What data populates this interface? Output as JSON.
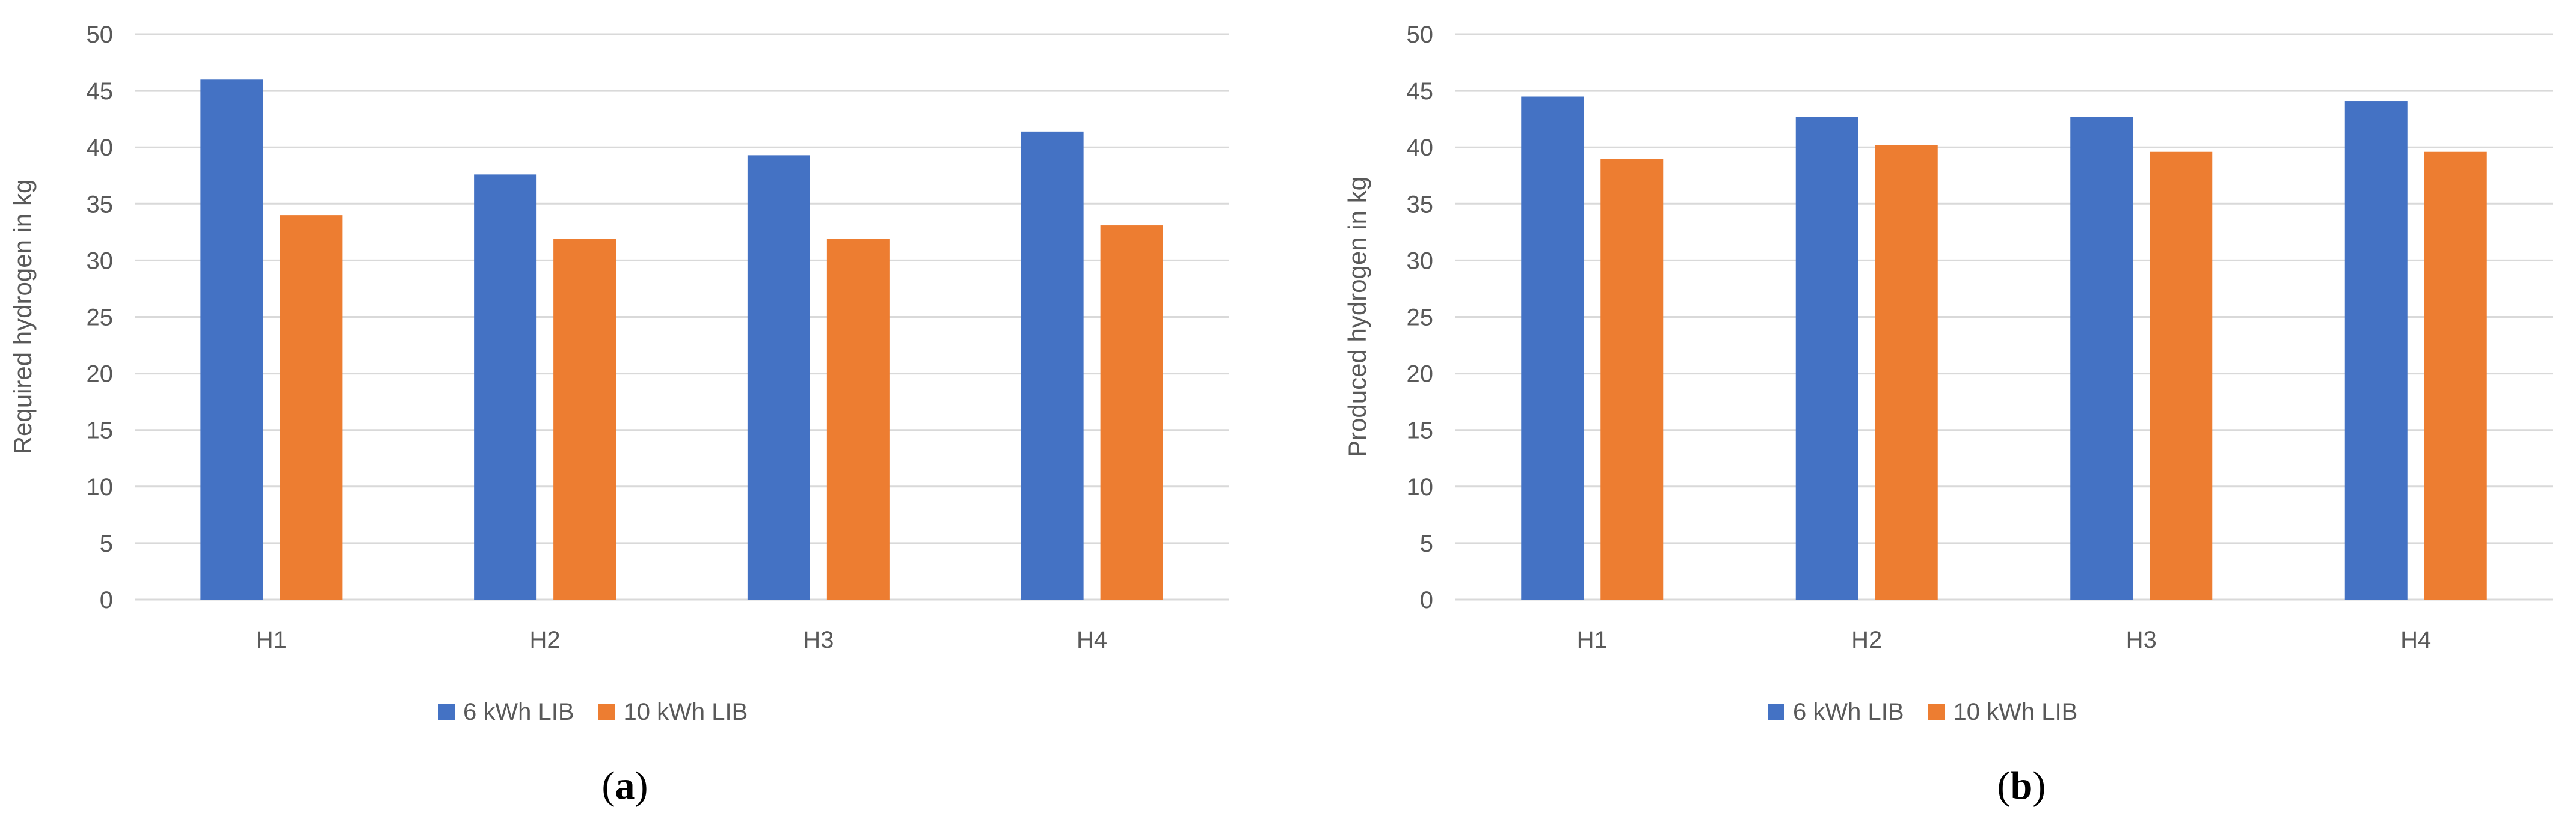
{
  "colors": {
    "series1": "#4472C4",
    "series2": "#ED7D31",
    "grid": "#D9D9D9",
    "text": "#595959"
  },
  "chart_data": [
    {
      "type": "bar",
      "caption": "a",
      "categories": [
        "H1",
        "H2",
        "H3",
        "H4"
      ],
      "series": [
        {
          "name": "6 kWh LIB",
          "values": [
            46,
            37.6,
            39.3,
            41.4
          ]
        },
        {
          "name": "10 kWh LIB",
          "values": [
            34,
            31.9,
            31.9,
            33.1
          ]
        }
      ],
      "ylabel": "Required hydrogen in kg",
      "ylim": [
        0,
        50
      ],
      "yticks": [
        0,
        5,
        10,
        15,
        20,
        25,
        30,
        35,
        40,
        45,
        50
      ],
      "grid": true,
      "legend": "bottom"
    },
    {
      "type": "bar",
      "caption": "b",
      "categories": [
        "H1",
        "H2",
        "H3",
        "H4"
      ],
      "series": [
        {
          "name": "6 kWh LIB",
          "values": [
            44.5,
            42.7,
            42.7,
            44.1
          ]
        },
        {
          "name": "10 kWh LIB",
          "values": [
            39,
            40.2,
            39.6,
            39.6
          ]
        }
      ],
      "ylabel": "Produced hydrogen in kg",
      "ylim": [
        0,
        50
      ],
      "yticks": [
        0,
        5,
        10,
        15,
        20,
        25,
        30,
        35,
        40,
        45,
        50
      ],
      "grid": true,
      "legend": "bottom"
    }
  ]
}
